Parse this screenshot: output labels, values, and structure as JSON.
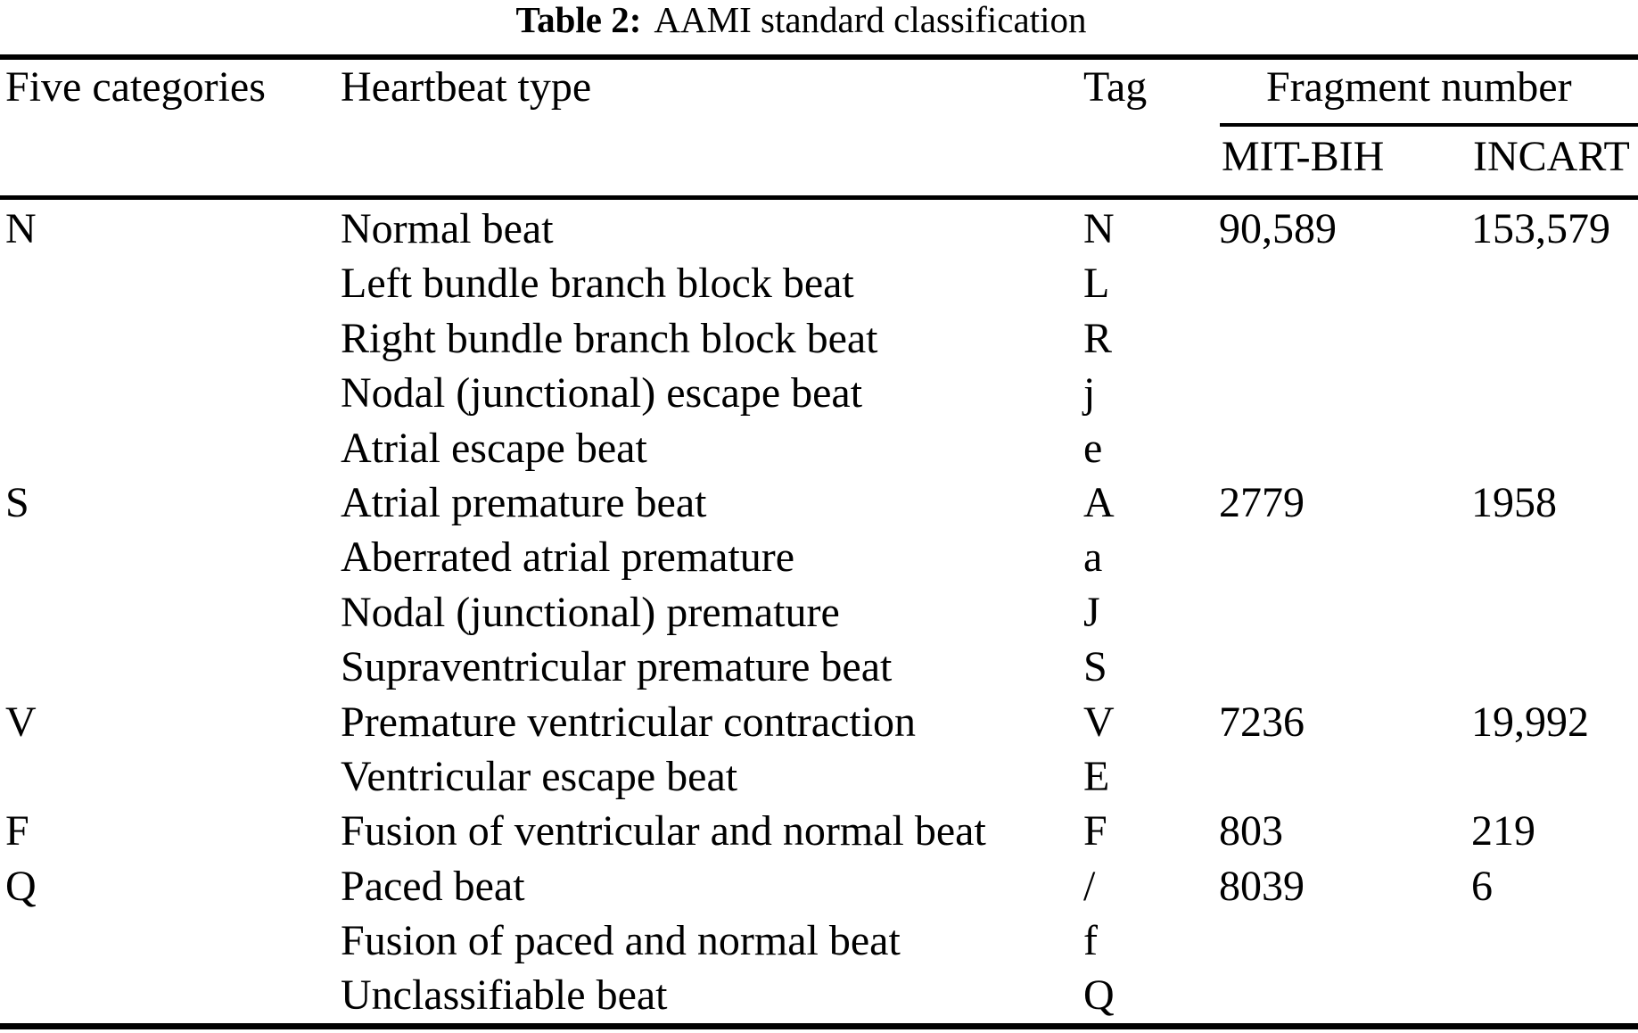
{
  "caption": {
    "label": "Table 2:",
    "text": "AAMI standard classification"
  },
  "table": {
    "headers": {
      "category": "Five categories",
      "type": "Heartbeat type",
      "tag": "Tag",
      "fragment_group": "Fragment number",
      "mitbih": "MIT-BIH",
      "incart": "INCART"
    },
    "rows": [
      {
        "category": "N",
        "type": "Normal beat",
        "tag": "N",
        "mitbih": "90,589",
        "incart": "153,579"
      },
      {
        "category": "",
        "type": "Left bundle branch block beat",
        "tag": "L",
        "mitbih": "",
        "incart": ""
      },
      {
        "category": "",
        "type": "Right bundle branch block beat",
        "tag": "R",
        "mitbih": "",
        "incart": ""
      },
      {
        "category": "",
        "type": "Nodal (junctional) escape beat",
        "tag": "j",
        "mitbih": "",
        "incart": ""
      },
      {
        "category": "",
        "type": "Atrial escape beat",
        "tag": "e",
        "mitbih": "",
        "incart": ""
      },
      {
        "category": "S",
        "type": "Atrial premature beat",
        "tag": "A",
        "mitbih": "2779",
        "incart": "1958"
      },
      {
        "category": "",
        "type": "Aberrated atrial premature",
        "tag": "a",
        "mitbih": "",
        "incart": ""
      },
      {
        "category": "",
        "type": "Nodal (junctional) premature",
        "tag": "J",
        "mitbih": "",
        "incart": ""
      },
      {
        "category": "",
        "type": "Supraventricular premature beat",
        "tag": "S",
        "mitbih": "",
        "incart": ""
      },
      {
        "category": "V",
        "type": "Premature ventricular contraction",
        "tag": "V",
        "mitbih": "7236",
        "incart": "19,992"
      },
      {
        "category": "",
        "type": "Ventricular escape beat",
        "tag": "E",
        "mitbih": "",
        "incart": ""
      },
      {
        "category": "F",
        "type": "Fusion of ventricular and normal beat",
        "tag": "F",
        "mitbih": "803",
        "incart": "219"
      },
      {
        "category": "Q",
        "type": "Paced beat",
        "tag": "/",
        "mitbih": "8039",
        "incart": "6"
      },
      {
        "category": "",
        "type": "Fusion of paced and normal beat",
        "tag": "f",
        "mitbih": "",
        "incart": ""
      },
      {
        "category": "",
        "type": "Unclassifiable beat",
        "tag": "Q",
        "mitbih": "",
        "incart": ""
      }
    ]
  }
}
